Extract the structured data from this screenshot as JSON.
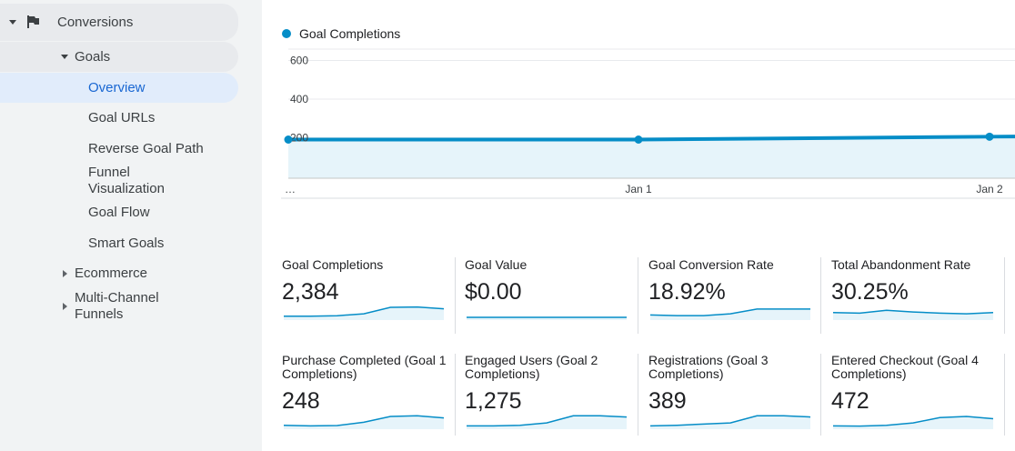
{
  "sidebar": {
    "conversions": "Conversions",
    "goals": "Goals",
    "items": [
      "Overview",
      "Goal URLs",
      "Reverse Goal Path",
      "Funnel Visualization",
      "Goal Flow",
      "Smart Goals"
    ],
    "ecommerce": "Ecommerce",
    "multi_channel": "Multi-Channel Funnels"
  },
  "chart": {
    "legend": "Goal Completions",
    "color": "#058dc7"
  },
  "chart_data": {
    "type": "line",
    "title": "",
    "series": [
      {
        "name": "Goal Completions",
        "values": [
          200,
          200,
          215
        ]
      }
    ],
    "x": [
      "…",
      "Jan 1",
      "Jan 2"
    ],
    "yticks": [
      200,
      400,
      600
    ],
    "ylim": [
      0,
      650
    ],
    "grid": true,
    "legend": "top-left"
  },
  "metrics": [
    {
      "title": "Goal Completions",
      "value": "2,384",
      "spark": [
        0.1,
        0.1,
        0.14,
        0.3,
        0.85,
        0.88,
        0.72
      ]
    },
    {
      "title": "Goal Value",
      "value": "$0.00",
      "spark": [
        0,
        0,
        0,
        0,
        0,
        0,
        0
      ]
    },
    {
      "title": "Goal Conversion Rate",
      "value": "18.92%",
      "spark": [
        0.2,
        0.15,
        0.15,
        0.3,
        0.7,
        0.7,
        0.7
      ]
    },
    {
      "title": "Total Abandonment Rate",
      "value": "30.25%",
      "spark": [
        0.4,
        0.35,
        0.6,
        0.45,
        0.35,
        0.3,
        0.4
      ]
    },
    {
      "title": "Purchase Completed (Goal 1 Completions)",
      "value": "248",
      "spark": [
        0.1,
        0.05,
        0.08,
        0.35,
        0.85,
        0.9,
        0.72
      ]
    },
    {
      "title": "Engaged Users (Goal 2 Completions)",
      "value": "1,275",
      "spark": [
        0.05,
        0.05,
        0.1,
        0.3,
        0.9,
        0.9,
        0.8
      ]
    },
    {
      "title": "Registrations (Goal 3 Completions)",
      "value": "389",
      "spark": [
        0.05,
        0.1,
        0.2,
        0.3,
        0.9,
        0.9,
        0.8
      ]
    },
    {
      "title": "Entered Checkout (Goal 4 Completions)",
      "value": "472",
      "spark": [
        0.05,
        0.03,
        0.1,
        0.3,
        0.75,
        0.85,
        0.65
      ]
    }
  ]
}
